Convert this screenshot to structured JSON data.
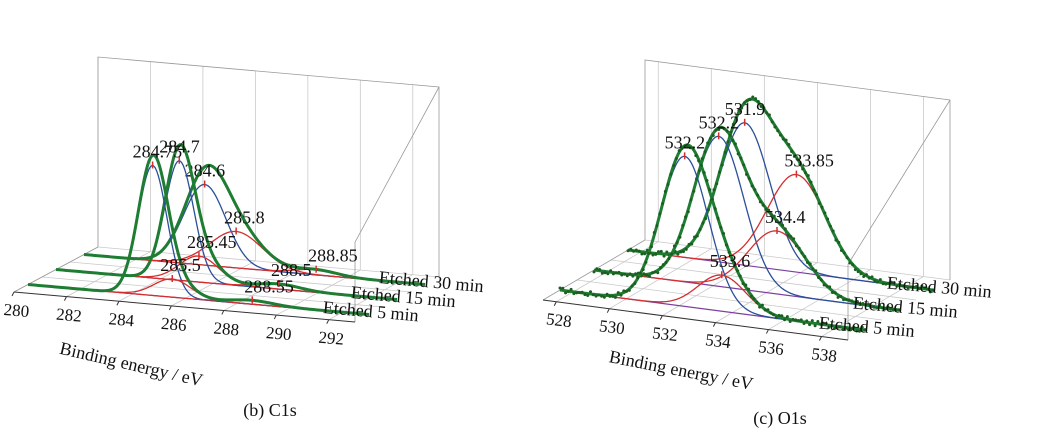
{
  "chart_data": [
    {
      "type": "line",
      "subtitle": "(b) C1s",
      "xlabel": "Binding energy / eV",
      "xticks": [
        280,
        282,
        284,
        286,
        288,
        290,
        292
      ],
      "xlim": [
        280,
        293
      ],
      "layers": [
        {
          "name": "Etched 5 min",
          "components": [
            {
              "center": 284.75,
              "height": 1.0,
              "width": 0.55,
              "color": "#2a4f9a"
            },
            {
              "center": 285.5,
              "height": 0.14,
              "width": 0.7,
              "color": "#d32f2f"
            },
            {
              "center": 288.55,
              "height": 0.03,
              "width": 0.8,
              "color": "#d32f2f"
            }
          ],
          "labels": [
            {
              "text": "284.75",
              "energy": 284.75,
              "height": 1.0
            },
            {
              "text": "285.5",
              "energy": 285.5,
              "height": 0.14
            },
            {
              "text": "288.55",
              "energy": 288.55,
              "height": 0.03
            }
          ]
        },
        {
          "name": "Etched 15 min",
          "components": [
            {
              "center": 284.7,
              "height": 0.92,
              "width": 0.55,
              "color": "#2a4f9a"
            },
            {
              "center": 285.45,
              "height": 0.2,
              "width": 0.75,
              "color": "#d32f2f"
            },
            {
              "center": 288.5,
              "height": 0.04,
              "width": 0.8,
              "color": "#d32f2f"
            }
          ],
          "labels": [
            {
              "text": "284.7",
              "energy": 284.7,
              "height": 0.92
            },
            {
              "text": "285.45",
              "energy": 285.45,
              "height": 0.2
            },
            {
              "text": "288.5",
              "energy": 288.5,
              "height": 0.04
            }
          ]
        },
        {
          "name": "Etched 30 min",
          "components": [
            {
              "center": 284.6,
              "height": 0.62,
              "width": 0.8,
              "color": "#2a4f9a"
            },
            {
              "center": 285.8,
              "height": 0.28,
              "width": 1.0,
              "color": "#d32f2f"
            },
            {
              "center": 288.85,
              "height": 0.04,
              "width": 0.8,
              "color": "#d32f2f"
            }
          ],
          "labels": [
            {
              "text": "284.6",
              "energy": 284.6,
              "height": 0.62
            },
            {
              "text": "285.8",
              "energy": 285.8,
              "height": 0.28
            },
            {
              "text": "288.85",
              "energy": 288.85,
              "height": 0.04
            }
          ]
        }
      ]
    },
    {
      "type": "line",
      "subtitle": "(c) O1s",
      "xlabel": "Binding energy / eV",
      "xticks": [
        528,
        530,
        532,
        534,
        536,
        538
      ],
      "xlim": [
        527.5,
        539
      ],
      "layers": [
        {
          "name": "Etched 5 min",
          "components": [
            {
              "center": 532.2,
              "height": 1.0,
              "width": 0.9,
              "color": "#2a4f9a"
            },
            {
              "center": 533.6,
              "height": 0.24,
              "width": 0.9,
              "color": "#d32f2f"
            }
          ],
          "labels": [
            {
              "text": "532.2",
              "energy": 532.2,
              "height": 1.0
            },
            {
              "text": "533.6",
              "energy": 533.6,
              "height": 0.24
            }
          ]
        },
        {
          "name": "Etched 15 min",
          "components": [
            {
              "center": 532.2,
              "height": 1.0,
              "width": 0.95,
              "color": "#2a4f9a"
            },
            {
              "center": 534.4,
              "height": 0.42,
              "width": 1.1,
              "color": "#d32f2f"
            }
          ],
          "labels": [
            {
              "text": "532.2",
              "energy": 532.2,
              "height": 1.0
            },
            {
              "text": "534.4",
              "energy": 534.4,
              "height": 0.42
            }
          ]
        },
        {
          "name": "Etched 30 min",
          "components": [
            {
              "center": 531.9,
              "height": 0.95,
              "width": 0.95,
              "color": "#2a4f9a"
            },
            {
              "center": 533.85,
              "height": 0.65,
              "width": 1.1,
              "color": "#d32f2f"
            }
          ],
          "labels": [
            {
              "text": "531.9",
              "energy": 531.9,
              "height": 0.95
            },
            {
              "text": "533.85",
              "energy": 533.85,
              "height": 0.65
            }
          ]
        }
      ]
    }
  ],
  "colors": {
    "envelope": "#1e7d32",
    "measured_points": "#1b5e20",
    "baseline": "#7b3fa0",
    "component_primary": "#2a4f9a",
    "component_secondary": "#d32f2f"
  }
}
